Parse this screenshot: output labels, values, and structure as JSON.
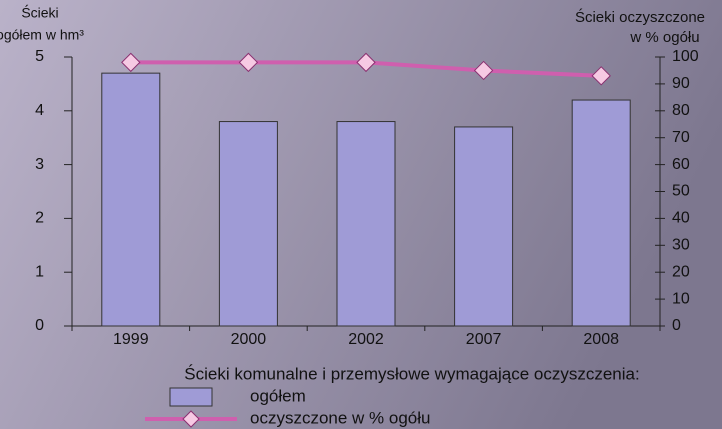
{
  "chart_data": {
    "type": "bar_line",
    "ylabel": [
      "Ścieki",
      "ogółem w hm³"
    ],
    "y2label": [
      "Ścieki oczyszczone",
      "w % ogółu"
    ],
    "legend_title": "Ścieki komunalne i przemysłowe wymagające oczyszczenia:",
    "categories": [
      "1999",
      "2000",
      "2002",
      "2007",
      "2008"
    ],
    "series": [
      {
        "name": "ogółem",
        "type": "bar",
        "color": "#9f9bd6",
        "values": [
          4.7,
          3.8,
          3.8,
          3.7,
          4.2
        ]
      },
      {
        "name": "oczyszczone w % ogółu",
        "type": "line",
        "axis": "y2",
        "color": "#cf5fae",
        "marker_color": "#f6c9e3",
        "values": [
          98,
          98,
          98,
          95,
          93
        ]
      }
    ],
    "ylim": [
      0,
      5
    ],
    "yticks": [
      0,
      1,
      2,
      3,
      4,
      5
    ],
    "y2lim": [
      0,
      100
    ],
    "y2ticks": [
      0,
      10,
      20,
      30,
      40,
      50,
      60,
      70,
      80,
      90,
      100
    ]
  }
}
